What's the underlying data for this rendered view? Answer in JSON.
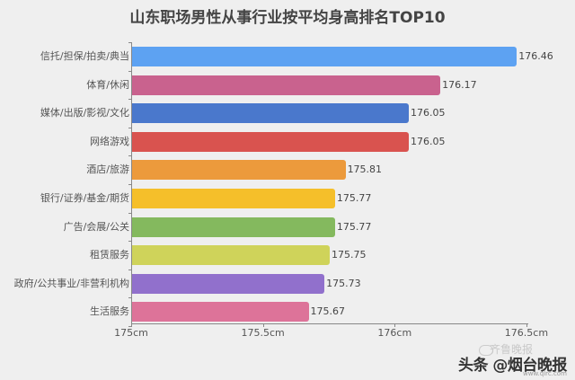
{
  "chart_data": {
    "type": "bar",
    "orientation": "horizontal",
    "title": "山东职场男性从事行业按平均身高排名TOP10",
    "xlabel": "",
    "ylabel": "",
    "xlim": [
      175,
      176.5
    ],
    "x_ticks": [
      "175cm",
      "175.5cm",
      "176cm",
      "176.5cm"
    ],
    "grid": false,
    "legend": null,
    "categories": [
      "信托/担保/拍卖/典当",
      "体育/休闲",
      "媒体/出版/影视/文化",
      "网络游戏",
      "酒店/旅游",
      "银行/证券/基金/期货",
      "广告/会展/公关",
      "租赁服务",
      "政府/公共事业/非营利机构",
      "生活服务"
    ],
    "values": [
      176.46,
      176.17,
      176.05,
      176.05,
      175.81,
      175.77,
      175.77,
      175.75,
      175.73,
      175.67
    ],
    "value_labels": [
      "176.46",
      "176.17",
      "176.05",
      "176.05",
      "175.81",
      "175.77",
      "175.77",
      "175.75",
      "175.73",
      "175.67"
    ],
    "colors": [
      "#5da2f2",
      "#c9628e",
      "#4a78cc",
      "#d9534f",
      "#ec9a3c",
      "#f5bf2a",
      "#84b95e",
      "#cfd35a",
      "#9170cc",
      "#dd7399"
    ]
  },
  "watermark": {
    "main": "头条 @烟台晚报",
    "faint": "齐鲁晚报",
    "url": "www.qlrc.com"
  }
}
